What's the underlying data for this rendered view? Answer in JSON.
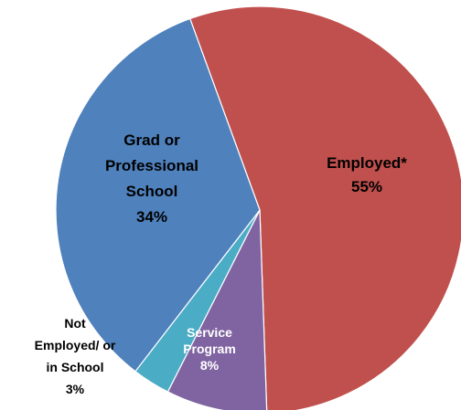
{
  "chart_data": {
    "type": "pie",
    "title": "",
    "slices": [
      {
        "name": "Employed*",
        "value": 55,
        "percent_label": "55%",
        "color": "#C0504D",
        "label_color": "#000000",
        "label_lines": [
          "Employed*"
        ]
      },
      {
        "name": "Service Program",
        "value": 8,
        "percent_label": "8%",
        "color": "#8064A2",
        "label_color": "#ffffff",
        "label_lines": [
          "Service",
          "Program"
        ]
      },
      {
        "name": "Not Employed/ or in School",
        "value": 3,
        "percent_label": "3%",
        "color": "#4BACC6",
        "label_color": "#000000",
        "label_lines": [
          "Not",
          "Employed/ or",
          "in School"
        ]
      },
      {
        "name": "Grad or Professional School",
        "value": 34,
        "percent_label": "34%",
        "color": "#4F81BD",
        "label_color": "#000000",
        "label_lines": [
          "Grad or",
          "Professional",
          "School"
        ]
      }
    ],
    "start_angle_deg": -20,
    "direction": "clockwise",
    "legend": "none",
    "border_color": "#ffffff"
  }
}
